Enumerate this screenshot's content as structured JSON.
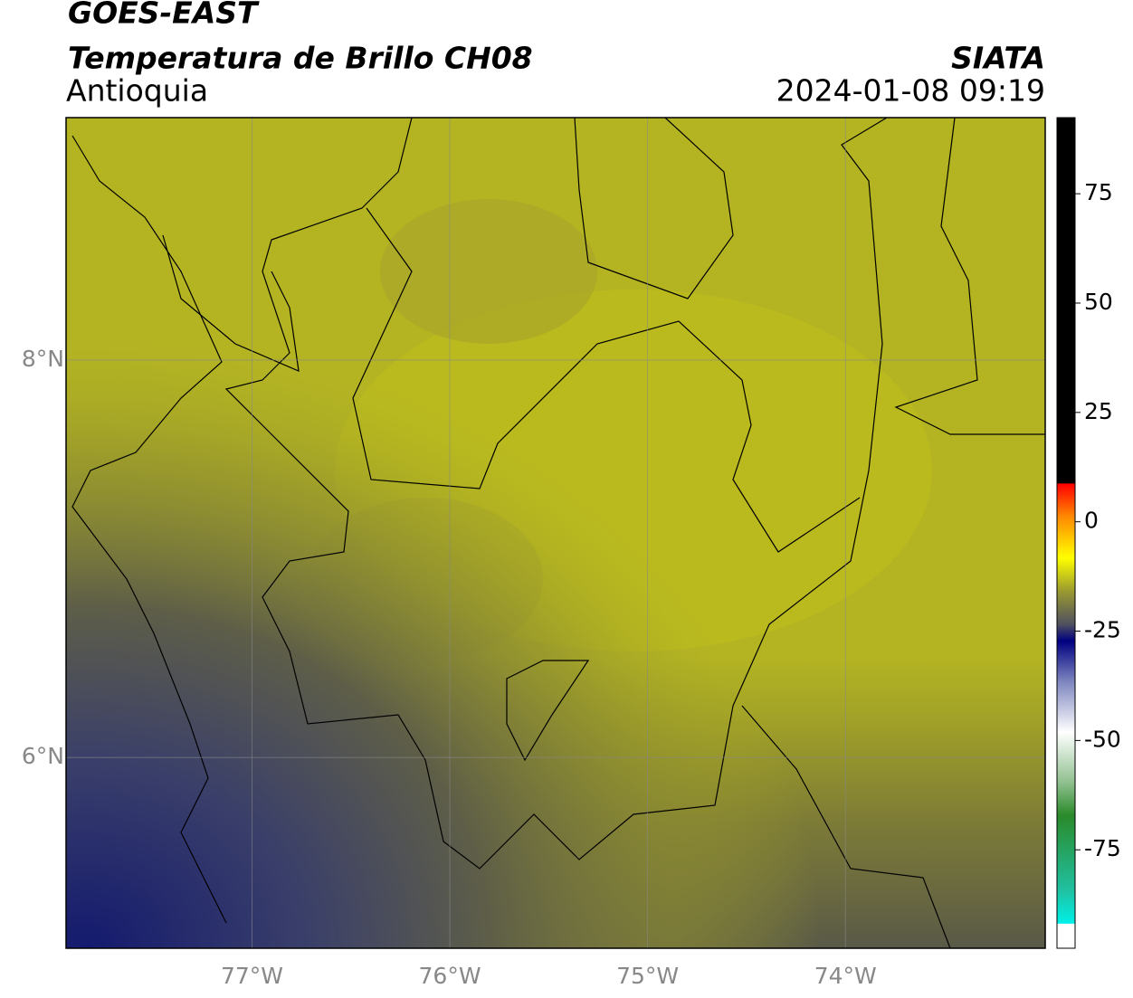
{
  "header": {
    "satellite": "GOES-EAST",
    "product": "Temperatura de Brillo CH08",
    "region": "Antioquia",
    "agency": "SIATA",
    "datetime": "2024-01-08 09:19"
  },
  "map": {
    "xlim": [
      -77.94,
      -72.99
    ],
    "ylim": [
      5.04,
      9.22
    ],
    "xticks": [
      {
        "value": -77,
        "label": "77°W"
      },
      {
        "value": -76,
        "label": "76°W"
      },
      {
        "value": -75,
        "label": "75°W"
      },
      {
        "value": -74,
        "label": "74°W"
      }
    ],
    "yticks": [
      {
        "value": 8,
        "label": "8°N"
      },
      {
        "value": 6,
        "label": "6°N"
      }
    ],
    "grid": true
  },
  "colorbar": {
    "lim": [
      -97.5,
      92.4
    ],
    "ticks": [
      75,
      50,
      25,
      0,
      -25,
      -50,
      -75
    ]
  }
}
